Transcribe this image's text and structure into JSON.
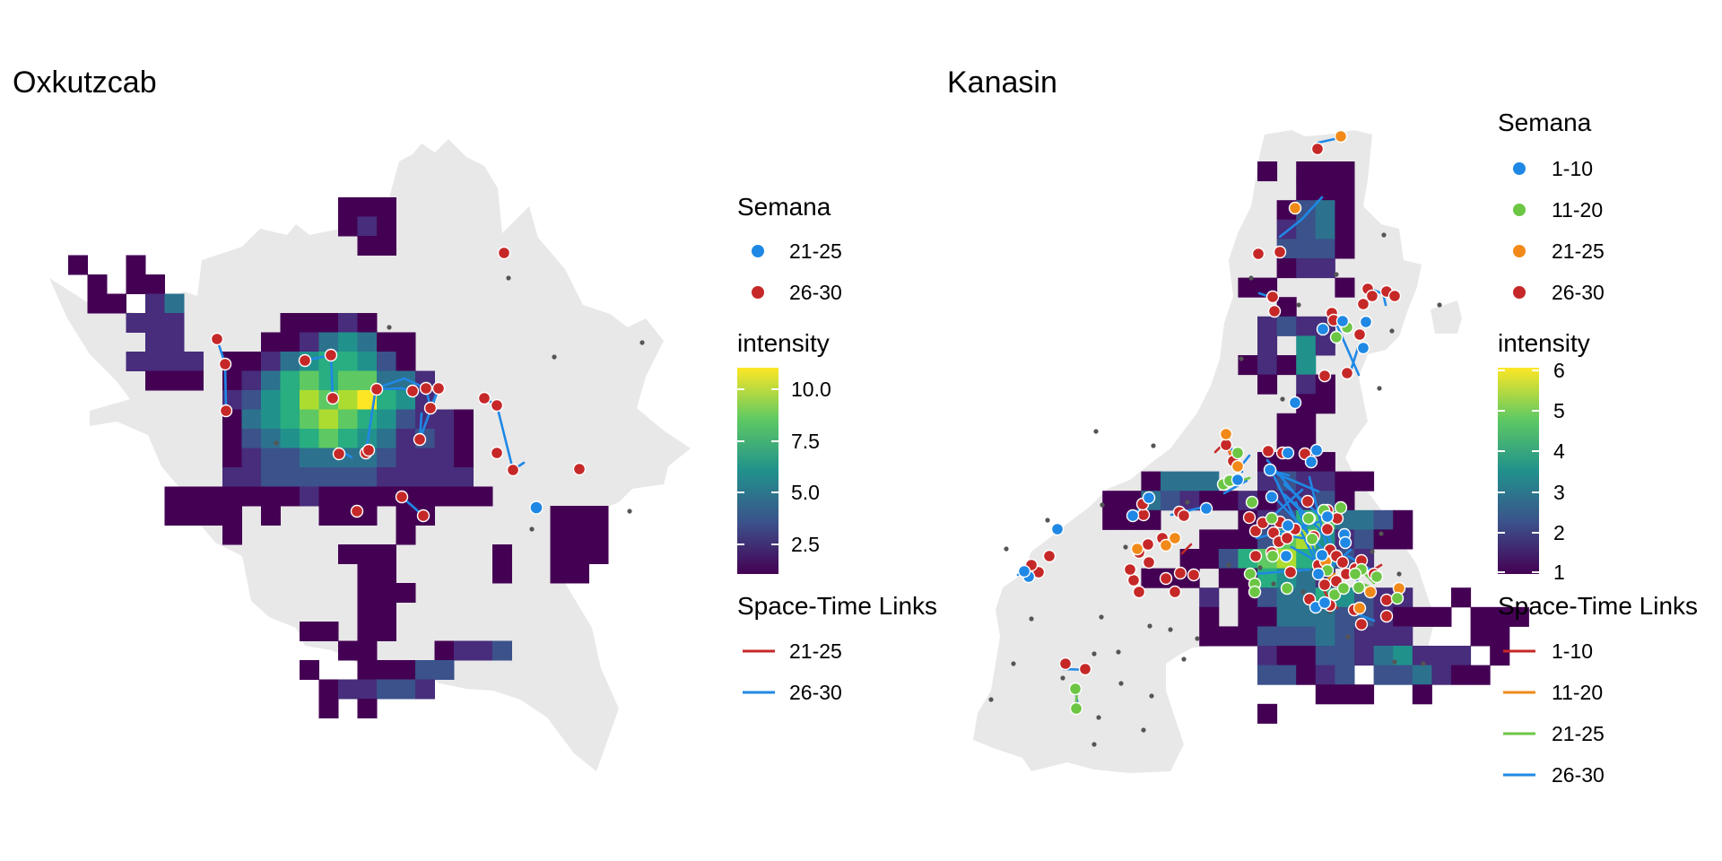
{
  "colors": {
    "blue": "#1f88e5",
    "red": "#c62828",
    "green": "#6cc644",
    "orange": "#f28a1a",
    "land": "#e8e8e8",
    "background_point": "#555555"
  },
  "panels": [
    {
      "title": "Oxkutzcab",
      "legend": {
        "semana_title": "Semana",
        "semana": [
          {
            "label": "21-25",
            "color": "#1f88e5"
          },
          {
            "label": "26-30",
            "color": "#c62828"
          }
        ],
        "intensity_title": "intensity",
        "intensity_ticks": [
          "10.0",
          "7.5",
          "5.0",
          "2.5"
        ],
        "links_title": "Space-Time Links",
        "links": [
          {
            "label": "21-25",
            "color": "#c62828"
          },
          {
            "label": "26-30",
            "color": "#1f88e5"
          }
        ]
      }
    },
    {
      "title": "Kanasin",
      "legend": {
        "semana_title": "Semana",
        "semana": [
          {
            "label": "1-10",
            "color": "#1f88e5"
          },
          {
            "label": "11-20",
            "color": "#6cc644"
          },
          {
            "label": "21-25",
            "color": "#f28a1a"
          },
          {
            "label": "26-30",
            "color": "#c62828"
          }
        ],
        "intensity_title": "intensity",
        "intensity_ticks": [
          "6",
          "5",
          "4",
          "3",
          "2",
          "1"
        ],
        "links_title": "Space-Time Links",
        "links": [
          {
            "label": "1-10",
            "color": "#c62828"
          },
          {
            "label": "11-20",
            "color": "#f28a1a"
          },
          {
            "label": "21-25",
            "color": "#6cc644"
          },
          {
            "label": "26-30",
            "color": "#1f88e5"
          }
        ]
      }
    }
  ]
}
